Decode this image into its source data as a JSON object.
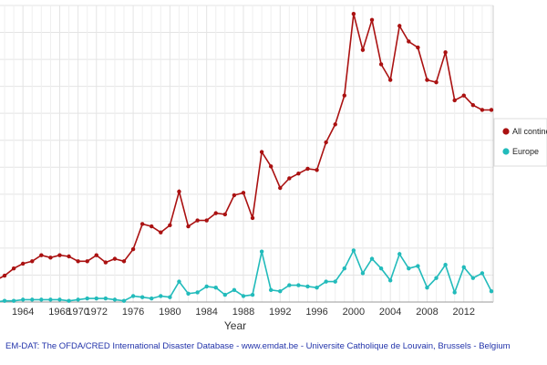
{
  "chart_data": {
    "type": "line",
    "xlabel": "Year",
    "ylabel": "",
    "title": "",
    "x_ticks": [
      "1964",
      "1968",
      "1970",
      "1972",
      "1976",
      "1980",
      "1984",
      "1988",
      "1992",
      "1996",
      "2000",
      "2004",
      "2008",
      "2012"
    ],
    "grid": true,
    "legend_position": "right",
    "series": [
      {
        "name": "All continents",
        "color": "#aa1111",
        "x": [
          1961,
          1962,
          1963,
          1964,
          1965,
          1966,
          1967,
          1968,
          1969,
          1970,
          1971,
          1972,
          1973,
          1974,
          1975,
          1976,
          1977,
          1978,
          1979,
          1980,
          1981,
          1982,
          1983,
          1984,
          1985,
          1986,
          1987,
          1988,
          1989,
          1990,
          1991,
          1992,
          1993,
          1994,
          1995,
          1996,
          1997,
          1998,
          1999,
          2000,
          2001,
          2002,
          2003,
          2004,
          2005,
          2006,
          2007,
          2008,
          2009,
          2010,
          2011,
          2012,
          2013,
          2014,
          2015
        ],
        "y": [
          18,
          22,
          28,
          32,
          34,
          39,
          37,
          39,
          38,
          34,
          34,
          39,
          33,
          36,
          34,
          44,
          65,
          63,
          58,
          64,
          92,
          63,
          68,
          68,
          74,
          73,
          89,
          91,
          70,
          125,
          113,
          95,
          103,
          107,
          111,
          110,
          133,
          148,
          172,
          240,
          210,
          235,
          198,
          185,
          230,
          217,
          212,
          185,
          183,
          208,
          168,
          172,
          164,
          160,
          160
        ]
      },
      {
        "name": "Europe",
        "color": "#22bbbb",
        "x": [
          1961,
          1962,
          1963,
          1964,
          1965,
          1966,
          1967,
          1968,
          1969,
          1970,
          1971,
          1972,
          1973,
          1974,
          1975,
          1976,
          1977,
          1978,
          1979,
          1980,
          1981,
          1982,
          1983,
          1984,
          1985,
          1986,
          1987,
          1988,
          1989,
          1990,
          1991,
          1992,
          1993,
          1994,
          1995,
          1996,
          1997,
          1998,
          1999,
          2000,
          2001,
          2002,
          2003,
          2004,
          2005,
          2006,
          2007,
          2008,
          2009,
          2010,
          2011,
          2012,
          2013,
          2014,
          2015
        ],
        "y": [
          0,
          1,
          1,
          2,
          2,
          2,
          2,
          2,
          1,
          2,
          3,
          3,
          3,
          2,
          1,
          5,
          4,
          3,
          5,
          4,
          17,
          7,
          8,
          13,
          12,
          6,
          10,
          5,
          6,
          42,
          10,
          9,
          14,
          14,
          13,
          12,
          17,
          17,
          28,
          43,
          24,
          36,
          28,
          18,
          40,
          28,
          30,
          12,
          20,
          31,
          8,
          29,
          20,
          24,
          9
        ]
      }
    ]
  },
  "footer": {
    "text": "EM-DAT: The OFDA/CRED International Disaster Database - www.emdat.be - Universite Catholique de Louvain, Brussels - Belgium"
  }
}
